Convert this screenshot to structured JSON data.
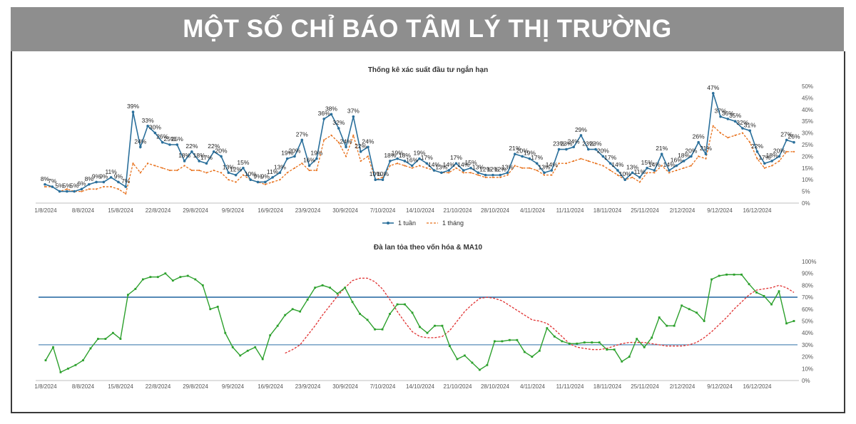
{
  "header": {
    "title": "MỘT SỐ CHỈ BÁO TÂM LÝ THỊ TRƯỜNG"
  },
  "colors": {
    "banner_bg": "#8e8e8e",
    "weekly": "#2a6f9b",
    "monthly": "#e8701a",
    "breadth": "#2ca02c",
    "ma10": "#e03030",
    "hline": "#2e6fa6"
  },
  "chart_data": [
    {
      "type": "line",
      "title": "Thống kê xác suất đầu tư ngắn hạn",
      "x_tick_labels": [
        "1/8/2024",
        "8/8/2024",
        "15/8/2024",
        "22/8/2024",
        "29/8/2024",
        "9/9/2024",
        "16/9/2024",
        "23/9/2024",
        "30/9/2024",
        "7/10/2024",
        "14/10/2024",
        "21/10/2024",
        "28/10/2024",
        "4/11/2024",
        "11/11/2024",
        "18/11/2024",
        "25/11/2024",
        "2/12/2024",
        "9/12/2024",
        "16/12/2024"
      ],
      "y_tick_labels": [
        "0%",
        "5%",
        "10%",
        "15%",
        "20%",
        "25%",
        "30%",
        "35%",
        "40%",
        "45%",
        "50%"
      ],
      "ylim": [
        0,
        50
      ],
      "legend_position": "bottom",
      "series": [
        {
          "name": "1 tuần",
          "style": "solid-markers",
          "values": [
            8,
            7,
            5,
            5,
            5,
            6,
            8,
            9,
            9,
            11,
            9,
            7,
            39,
            24,
            33,
            30,
            26,
            25,
            25,
            18,
            22,
            18,
            17,
            22,
            20,
            13,
            12,
            15,
            10,
            9,
            9,
            11,
            13,
            19,
            20,
            27,
            16,
            19,
            36,
            38,
            32,
            24,
            37,
            22,
            24,
            10,
            10,
            18,
            19,
            18,
            16,
            19,
            17,
            14,
            13,
            14,
            17,
            14,
            15,
            13,
            12,
            12,
            12,
            13,
            21,
            20,
            19,
            17,
            13,
            14,
            23,
            23,
            24,
            29,
            23,
            23,
            20,
            17,
            14,
            10,
            13,
            11,
            15,
            14,
            21,
            14,
            16,
            18,
            20,
            26,
            21,
            47,
            37,
            36,
            35,
            32,
            31,
            22,
            17,
            18,
            20,
            27,
            26
          ]
        },
        {
          "name": "1 tháng",
          "style": "dashed",
          "values": [
            7,
            7,
            5,
            6,
            5,
            5,
            6,
            6,
            7,
            7,
            6,
            4,
            17,
            13,
            17,
            16,
            15,
            14,
            14,
            16,
            14,
            14,
            13,
            14,
            13,
            10,
            9,
            12,
            10,
            9,
            8,
            9,
            10,
            13,
            15,
            17,
            14,
            14,
            27,
            29,
            26,
            20,
            29,
            18,
            20,
            10,
            11,
            16,
            17,
            16,
            15,
            16,
            15,
            14,
            13,
            13,
            15,
            13,
            13,
            12,
            11,
            11,
            11,
            12,
            16,
            15,
            15,
            14,
            12,
            12,
            17,
            17,
            18,
            19,
            18,
            17,
            16,
            14,
            12,
            10,
            11,
            9,
            13,
            13,
            16,
            13,
            14,
            15,
            16,
            20,
            19,
            33,
            30,
            28,
            29,
            30,
            26,
            19,
            15,
            16,
            18,
            22,
            22
          ]
        }
      ]
    },
    {
      "type": "line",
      "title": "Đà lan tỏa theo vốn hóa & MA10",
      "x_tick_labels": [
        "1/8/2024",
        "8/8/2024",
        "15/8/2024",
        "22/8/2024",
        "29/8/2024",
        "9/9/2024",
        "16/9/2024",
        "23/9/2024",
        "30/9/2024",
        "7/10/2024",
        "14/10/2024",
        "21/10/2024",
        "28/10/2024",
        "4/11/2024",
        "11/11/2024",
        "18/11/2024",
        "25/11/2024",
        "2/12/2024",
        "9/12/2024",
        "16/12/2024"
      ],
      "y_tick_labels": [
        "0%",
        "10%",
        "20%",
        "30%",
        "40%",
        "50%",
        "60%",
        "70%",
        "80%",
        "90%",
        "100%"
      ],
      "ylim": [
        0,
        100
      ],
      "reference_lines": [
        70,
        30
      ],
      "series": [
        {
          "style": "solid-markers",
          "values": [
            17,
            28,
            7,
            10,
            13,
            17,
            27,
            35,
            35,
            40,
            35,
            72,
            77,
            85,
            87,
            87,
            90,
            84,
            87,
            88,
            85,
            80,
            60,
            62,
            40,
            28,
            21,
            25,
            28,
            18,
            38,
            46,
            55,
            60,
            58,
            68,
            78,
            80,
            78,
            73,
            78,
            66,
            56,
            51,
            43,
            43,
            56,
            64,
            64,
            57,
            45,
            40,
            46,
            46,
            29,
            18,
            21,
            15,
            9,
            13,
            33,
            33,
            34,
            34,
            24,
            20,
            25,
            44,
            37,
            33,
            31,
            31,
            32,
            32,
            32,
            26,
            26,
            16,
            20,
            35,
            28,
            36,
            53,
            46,
            46,
            63,
            60,
            57,
            50,
            85,
            88,
            89,
            89,
            89,
            81,
            74,
            71,
            64,
            75,
            48,
            50
          ]
        },
        {
          "style": "dashed",
          "values": [
            23,
            26,
            30,
            38,
            46,
            55,
            63,
            71,
            78,
            84,
            86,
            86,
            83,
            77,
            68,
            58,
            49,
            41,
            37,
            36,
            36,
            37,
            42,
            50,
            58,
            64,
            69,
            70,
            69,
            67,
            63,
            59,
            55,
            51,
            50,
            48,
            43,
            37,
            31,
            28,
            27,
            26,
            26,
            27,
            29,
            31,
            32,
            32,
            32,
            31,
            30,
            29,
            29,
            29,
            30,
            32,
            36,
            41,
            47,
            53,
            60,
            66,
            72,
            76,
            77,
            78,
            80,
            78,
            74
          ]
        }
      ]
    }
  ]
}
